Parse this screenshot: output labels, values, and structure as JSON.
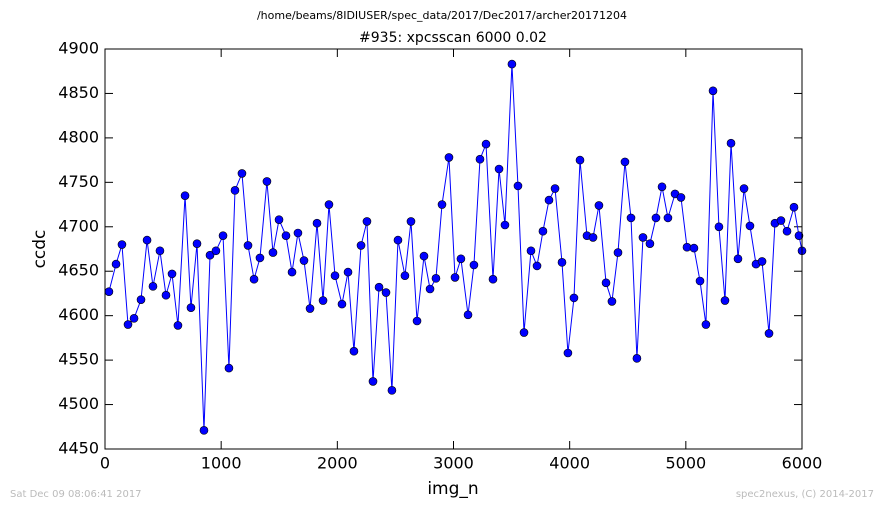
{
  "chart_data": {
    "type": "line",
    "header": "/home/beams/8IDIUSER/spec_data/2017/Dec2017/archer20171204",
    "title": "#935: xpcsscan 6000 0.02",
    "xlabel": "img_n",
    "ylabel": "ccdc",
    "footer_left": "Sat Dec 09 08:06:41 2017",
    "footer_right": "spec2nexus, (C) 2014-2017",
    "color": "#0000ff",
    "marker": "circle",
    "grid": false,
    "xlim": [
      0,
      6000
    ],
    "xticks": [
      0,
      1000,
      2000,
      3000,
      4000,
      5000,
      6000
    ],
    "ylim": [
      4450,
      4900
    ],
    "yticks": [
      4450,
      4500,
      4550,
      4600,
      4650,
      4700,
      4750,
      4800,
      4850,
      4900
    ],
    "x": [
      34,
      95,
      146,
      198,
      250,
      310,
      362,
      413,
      473,
      525,
      577,
      628,
      689,
      740,
      792,
      852,
      904,
      955,
      1016,
      1067,
      1119,
      1179,
      1231,
      1283,
      1334,
      1394,
      1446,
      1498,
      1558,
      1610,
      1661,
      1713,
      1765,
      1825,
      1877,
      1928,
      1980,
      2040,
      2092,
      2143,
      2204,
      2255,
      2307,
      2359,
      2419,
      2470,
      2522,
      2582,
      2634,
      2686,
      2746,
      2798,
      2849,
      2901,
      2961,
      3013,
      3064,
      3125,
      3176,
      3228,
      3280,
      3340,
      3392,
      3443,
      3503,
      3555,
      3607,
      3667,
      3719,
      3770,
      3822,
      3874,
      3934,
      3985,
      4037,
      4089,
      4149,
      4201,
      4252,
      4313,
      4364,
      4416,
      4476,
      4528,
      4579,
      4631,
      4691,
      4743,
      4795,
      4846,
      4907,
      4958,
      5010,
      5070,
      5122,
      5173,
      5234,
      5285,
      5337,
      5389,
      5449,
      5501,
      5552,
      5604,
      5656,
      5716,
      5767,
      5819,
      5871,
      5931,
      5974,
      6000
    ],
    "values": [
      4627,
      4658,
      4680,
      4590,
      4597,
      4618,
      4685,
      4633,
      4673,
      4623,
      4647,
      4589,
      4735,
      4609,
      4681,
      4471,
      4668,
      4673,
      4690,
      4541,
      4741,
      4760,
      4679,
      4641,
      4665,
      4751,
      4671,
      4708,
      4690,
      4649,
      4693,
      4662,
      4608,
      4704,
      4617,
      4725,
      4645,
      4613,
      4649,
      4560,
      4679,
      4706,
      4526,
      4632,
      4626,
      4516,
      4685,
      4645,
      4706,
      4594,
      4667,
      4630,
      4642,
      4725,
      4778,
      4643,
      4664,
      4601,
      4657,
      4776,
      4793,
      4641,
      4765,
      4702,
      4883,
      4746,
      4581,
      4673,
      4656,
      4695,
      4730,
      4743,
      4660,
      4558,
      4620,
      4775,
      4690,
      4688,
      4724,
      4637,
      4616,
      4671,
      4773,
      4710,
      4552,
      4688,
      4681,
      4710,
      4745,
      4710,
      4737,
      4733,
      4677,
      4676,
      4639,
      4590,
      4853,
      4700,
      4617,
      4794,
      4664,
      4743,
      4701,
      4658,
      4661,
      4580,
      4704,
      4707,
      4695,
      4722,
      4690,
      4673
    ]
  }
}
